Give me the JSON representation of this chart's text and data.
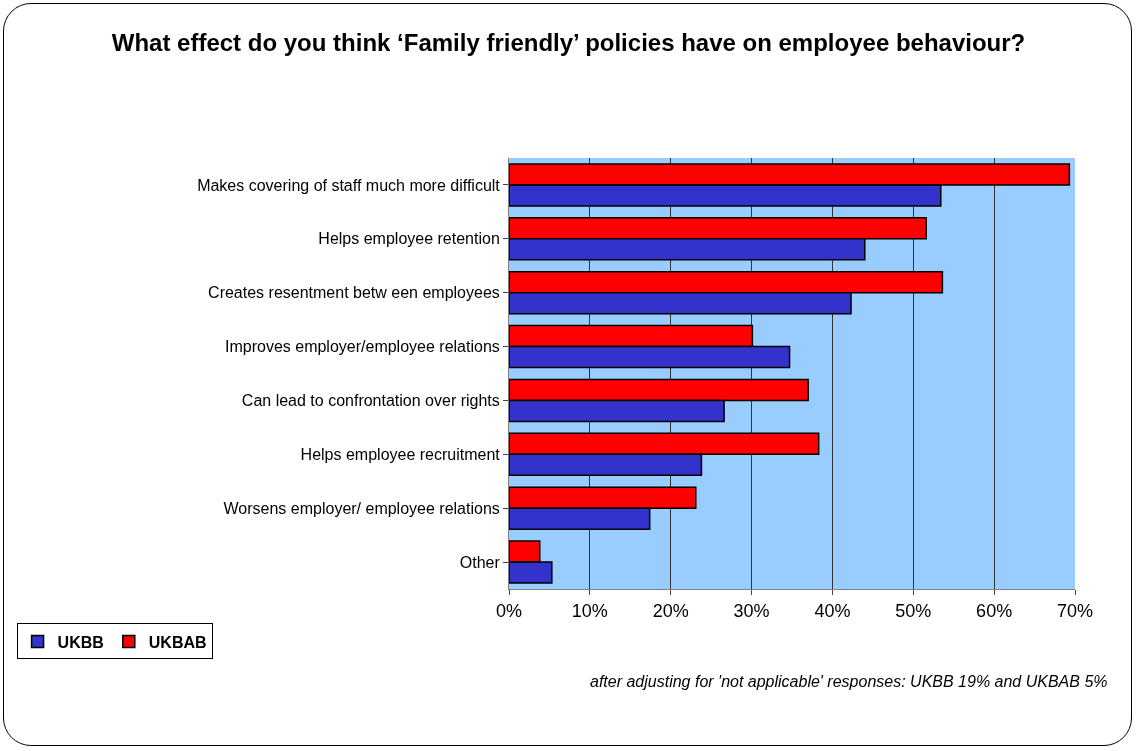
{
  "chart_data": {
    "type": "bar",
    "orientation": "horizontal",
    "title": "What effect do you think ‘Family friendly’ policies have on employee behaviour?",
    "categories": [
      "Makes covering of staff much more difficult",
      "Helps employee retention",
      "Creates resentment betw een employees",
      "Improves employer/employee relations",
      "Can lead to confrontation over rights",
      "Helps employee recruitment",
      "Worsens employer/ employee relations",
      "Other"
    ],
    "series": [
      {
        "name": "UKBB",
        "color": "#3333cc",
        "values": [
          53.4,
          44,
          42.3,
          34.7,
          26.6,
          23.8,
          17.4,
          5.3
        ]
      },
      {
        "name": "UKBAB",
        "color": "#ff0000",
        "values": [
          69.3,
          51.6,
          53.6,
          30.1,
          37,
          38.3,
          23.1,
          3.8
        ]
      }
    ],
    "xlim": [
      0,
      70
    ],
    "xticks": [
      {
        "value": 0,
        "label": "0%"
      },
      {
        "value": 10,
        "label": "10%"
      },
      {
        "value": 20,
        "label": "20%"
      },
      {
        "value": 30,
        "label": "30%"
      },
      {
        "value": 40,
        "label": "40%"
      },
      {
        "value": 50,
        "label": "50%"
      },
      {
        "value": 60,
        "label": "60%"
      },
      {
        "value": 70,
        "label": "70%"
      }
    ],
    "grid": "x",
    "legend": "bottom left",
    "annotations": [
      "after adjusting for 'not applicable' responses: UKBB 19% and UKBAB 5%"
    ]
  }
}
